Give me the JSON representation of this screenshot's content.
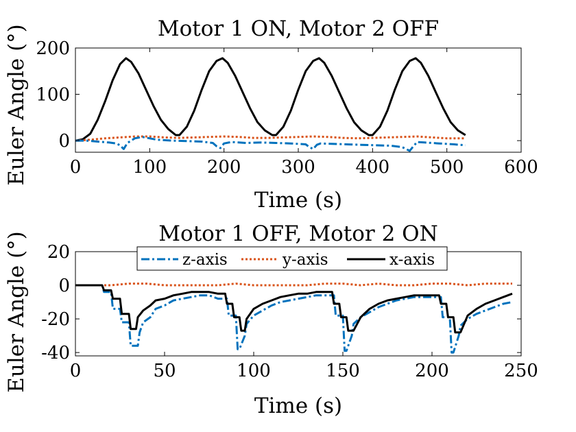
{
  "colors": {
    "z": "#0072BD",
    "y": "#D95319",
    "x": "#000000"
  },
  "chart_data": [
    {
      "type": "line",
      "title": "Motor 1 ON, Motor 2 OFF",
      "xlabel": "Time (s)",
      "ylabel": "Euler Angle (°)",
      "xlim": [
        0,
        600
      ],
      "ylim": [
        -25,
        200
      ],
      "xticks": [
        "0",
        "100",
        "200",
        "300",
        "400",
        "500",
        "600"
      ],
      "yticks": [
        "0",
        "100",
        "200"
      ],
      "grid": false,
      "legend": "none",
      "series": [
        {
          "key": "x",
          "x": [
            0,
            10,
            20,
            30,
            40,
            50,
            60,
            68,
            75,
            85,
            95,
            105,
            115,
            125,
            135,
            140,
            150,
            160,
            170,
            180,
            190,
            198,
            205,
            215,
            225,
            235,
            245,
            255,
            265,
            270,
            280,
            290,
            300,
            310,
            320,
            328,
            335,
            345,
            355,
            365,
            375,
            385,
            395,
            400,
            410,
            420,
            430,
            440,
            450,
            458,
            465,
            475,
            485,
            495,
            505,
            515,
            525
          ],
          "y": [
            0,
            3,
            15,
            45,
            85,
            130,
            165,
            178,
            170,
            145,
            110,
            75,
            45,
            25,
            12,
            12,
            30,
            65,
            110,
            150,
            172,
            178,
            168,
            140,
            105,
            70,
            40,
            22,
            12,
            12,
            30,
            65,
            110,
            150,
            172,
            178,
            168,
            140,
            105,
            70,
            40,
            22,
            12,
            12,
            30,
            65,
            110,
            150,
            172,
            178,
            168,
            140,
            105,
            70,
            40,
            22,
            12
          ]
        },
        {
          "key": "y",
          "x": [
            0,
            20,
            40,
            60,
            80,
            100,
            120,
            140,
            160,
            180,
            200,
            220,
            240,
            260,
            280,
            300,
            320,
            340,
            360,
            380,
            400,
            420,
            440,
            460,
            480,
            500,
            525
          ],
          "y": [
            0,
            2,
            5,
            7,
            9,
            9,
            7,
            6,
            7,
            8,
            9,
            8,
            6,
            6,
            7,
            8,
            9,
            8,
            6,
            5,
            6,
            7,
            8,
            9,
            7,
            5,
            5
          ]
        },
        {
          "key": "z",
          "x": [
            0,
            15,
            30,
            45,
            55,
            60,
            65,
            70,
            80,
            90,
            110,
            130,
            150,
            170,
            185,
            190,
            195,
            200,
            210,
            230,
            250,
            270,
            290,
            310,
            315,
            320,
            325,
            330,
            345,
            365,
            385,
            405,
            425,
            440,
            445,
            450,
            455,
            460,
            470,
            490,
            510,
            525
          ],
          "y": [
            0,
            0,
            -2,
            -4,
            -6,
            -10,
            -18,
            -5,
            5,
            8,
            2,
            0,
            -1,
            -2,
            -5,
            -12,
            -16,
            -6,
            -3,
            -5,
            -4,
            -5,
            -6,
            -8,
            -14,
            -18,
            -9,
            -6,
            -7,
            -8,
            -9,
            -10,
            -11,
            -14,
            -18,
            -22,
            -12,
            -3,
            -4,
            -6,
            -8,
            -10
          ]
        }
      ]
    },
    {
      "type": "line",
      "title": "Motor 1 OFF, Motor 2 ON",
      "xlabel": "Time (s)",
      "ylabel": "Euler Angle (°)",
      "xlim": [
        0,
        250
      ],
      "ylim": [
        -42,
        20
      ],
      "xticks": [
        "0",
        "50",
        "100",
        "150",
        "200",
        "250"
      ],
      "yticks": [
        "-40",
        "-20",
        "0",
        "20"
      ],
      "grid": false,
      "legend": "top-center",
      "series": [
        {
          "key": "z",
          "name": "z-axis",
          "x": [
            0,
            15,
            16,
            20,
            21,
            25,
            26,
            30,
            31,
            32,
            35,
            36,
            38,
            42,
            45,
            50,
            55,
            60,
            65,
            70,
            75,
            80,
            85,
            86,
            90,
            91,
            92,
            95,
            96,
            100,
            105,
            110,
            115,
            120,
            125,
            130,
            135,
            140,
            145,
            146,
            150,
            151,
            152,
            155,
            156,
            160,
            165,
            170,
            175,
            180,
            185,
            190,
            195,
            200,
            205,
            206,
            210,
            211,
            212,
            215,
            216,
            220,
            225,
            230,
            235,
            240,
            245
          ],
          "y": [
            0,
            0,
            -4,
            -4,
            -14,
            -14,
            -22,
            -22,
            -36,
            -36,
            -36,
            -28,
            -22,
            -19,
            -14,
            -12,
            -9,
            -8,
            -7,
            -6,
            -6,
            -8,
            -8,
            -18,
            -18,
            -38,
            -38,
            -30,
            -23,
            -18,
            -15,
            -12,
            -10,
            -9,
            -8,
            -7,
            -6,
            -6,
            -6,
            -18,
            -18,
            -39,
            -39,
            -30,
            -23,
            -19,
            -16,
            -13,
            -11,
            -9,
            -8,
            -7,
            -7,
            -7,
            -7,
            -19,
            -19,
            -40,
            -40,
            -30,
            -24,
            -20,
            -17,
            -15,
            -13,
            -11,
            -10
          ]
        },
        {
          "key": "y",
          "name": "y-axis",
          "x": [
            0,
            15,
            20,
            30,
            40,
            50,
            60,
            70,
            80,
            90,
            100,
            110,
            120,
            130,
            140,
            150,
            160,
            170,
            180,
            190,
            200,
            210,
            220,
            230,
            245
          ],
          "y": [
            0,
            0,
            0,
            1,
            1,
            0,
            0,
            0,
            0,
            1,
            0,
            0,
            0,
            0,
            1,
            1,
            0,
            1,
            0,
            0,
            1,
            1,
            0,
            1,
            1
          ]
        },
        {
          "key": "x",
          "name": "x-axis",
          "x": [
            0,
            15,
            16,
            20,
            21,
            25,
            26,
            30,
            31,
            34,
            35,
            38,
            42,
            45,
            50,
            55,
            60,
            65,
            70,
            75,
            80,
            84,
            85,
            88,
            89,
            92,
            93,
            95,
            96,
            100,
            105,
            110,
            115,
            120,
            125,
            130,
            135,
            140,
            144,
            145,
            148,
            149,
            152,
            153,
            156,
            160,
            165,
            170,
            175,
            180,
            185,
            190,
            195,
            200,
            204,
            205,
            208,
            209,
            212,
            213,
            216,
            220,
            225,
            230,
            235,
            240,
            245
          ],
          "y": [
            0,
            0,
            -3,
            -3,
            -8,
            -8,
            -17,
            -17,
            -26,
            -26,
            -19,
            -15,
            -12,
            -9,
            -8,
            -6,
            -5,
            -4,
            -4,
            -4,
            -5,
            -5,
            -11,
            -11,
            -19,
            -19,
            -27,
            -27,
            -20,
            -14,
            -11,
            -9,
            -7,
            -6,
            -5,
            -5,
            -4,
            -4,
            -4,
            -11,
            -11,
            -19,
            -19,
            -27,
            -27,
            -19,
            -14,
            -11,
            -9,
            -8,
            -7,
            -6,
            -6,
            -6,
            -6,
            -11,
            -11,
            -19,
            -19,
            -28,
            -28,
            -18,
            -14,
            -11,
            -9,
            -7,
            -5
          ]
        }
      ]
    }
  ]
}
